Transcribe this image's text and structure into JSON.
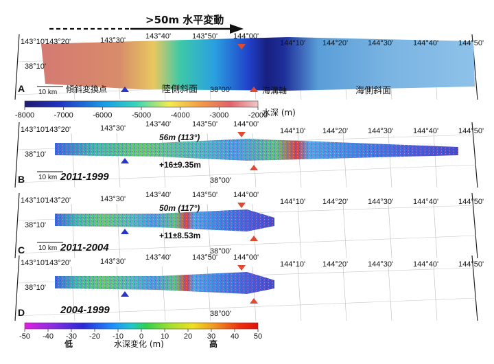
{
  "header": {
    "arrow_label": ">50m 水平変動"
  },
  "panels": [
    {
      "letter": "A",
      "lon_labels": [
        "143°10'",
        "143°20'",
        "143°30'",
        "143°40'",
        "143°50'",
        "144°00'",
        "144°10'",
        "144°20'",
        "144°30'",
        "144°40'",
        "144°50'"
      ],
      "lat_label_n": "38°10'",
      "lat_label_s": "38°00'",
      "scale": "10 km",
      "annotations": {
        "slope_break": "傾斜変換点",
        "landward_slope": "陸側斜面",
        "trench_axis": "海溝軸",
        "seaward_slope": "海側斜面"
      }
    },
    {
      "letter": "B",
      "lon_labels": [
        "143°10'",
        "143°20'",
        "143°30'",
        "143°40'",
        "143°50'",
        "144°00'",
        "144°10'",
        "144°20'",
        "144°30'",
        "144°40'",
        "144°50'"
      ],
      "lat_label_n": "38°10'",
      "lat_label_s": "38°00'",
      "scale": "10 km",
      "period": "2011-1999",
      "shift": "56m (113°)",
      "vertical": "+16±9.35m"
    },
    {
      "letter": "C",
      "lon_labels": [
        "143°10'",
        "143°20'",
        "143°30'",
        "143°40'",
        "143°50'",
        "144°00'",
        "144°10'",
        "144°20'",
        "144°30'",
        "144°40'",
        "144°50'"
      ],
      "lat_label_n": "38°10'",
      "lat_label_s": "38°00'",
      "scale": "10 km",
      "period": "2011-2004",
      "shift": "50m (117°)",
      "vertical": "+11±8.53m"
    },
    {
      "letter": "D",
      "lon_labels": [
        "143°10'",
        "143°20'",
        "143°30'",
        "143°40'",
        "143°50'",
        "144°00'",
        "144°10'",
        "144°20'",
        "144°30'",
        "144°40'",
        "144°50'"
      ],
      "lat_label_n": "38°10'",
      "lat_label_s": "38°00'",
      "period": "2004-1999"
    }
  ],
  "depth_colorbar": {
    "ticks": [
      "-8000",
      "-7000",
      "-6000",
      "-5000",
      "-4000",
      "-3000",
      "-2000"
    ],
    "unit": "水深 (m)",
    "colors": [
      "#1e1a6e",
      "#2233c4",
      "#1aa0e6",
      "#38d6b8",
      "#f2ec50",
      "#f29e46",
      "#e2616a",
      "#efc8c8"
    ]
  },
  "change_colorbar": {
    "ticks": [
      "-50",
      "-40",
      "-30",
      "-20",
      "-10",
      "0",
      "10",
      "20",
      "30",
      "40",
      "50"
    ],
    "low_label": "低",
    "high_label": "高",
    "unit": "水深変化 (m)",
    "colors": [
      "#e020e0",
      "#8a2be2",
      "#2a2ad8",
      "#1e90ff",
      "#20c8c8",
      "#30d050",
      "#a0e030",
      "#f0e020",
      "#f09020",
      "#f03010",
      "#e01010"
    ]
  }
}
